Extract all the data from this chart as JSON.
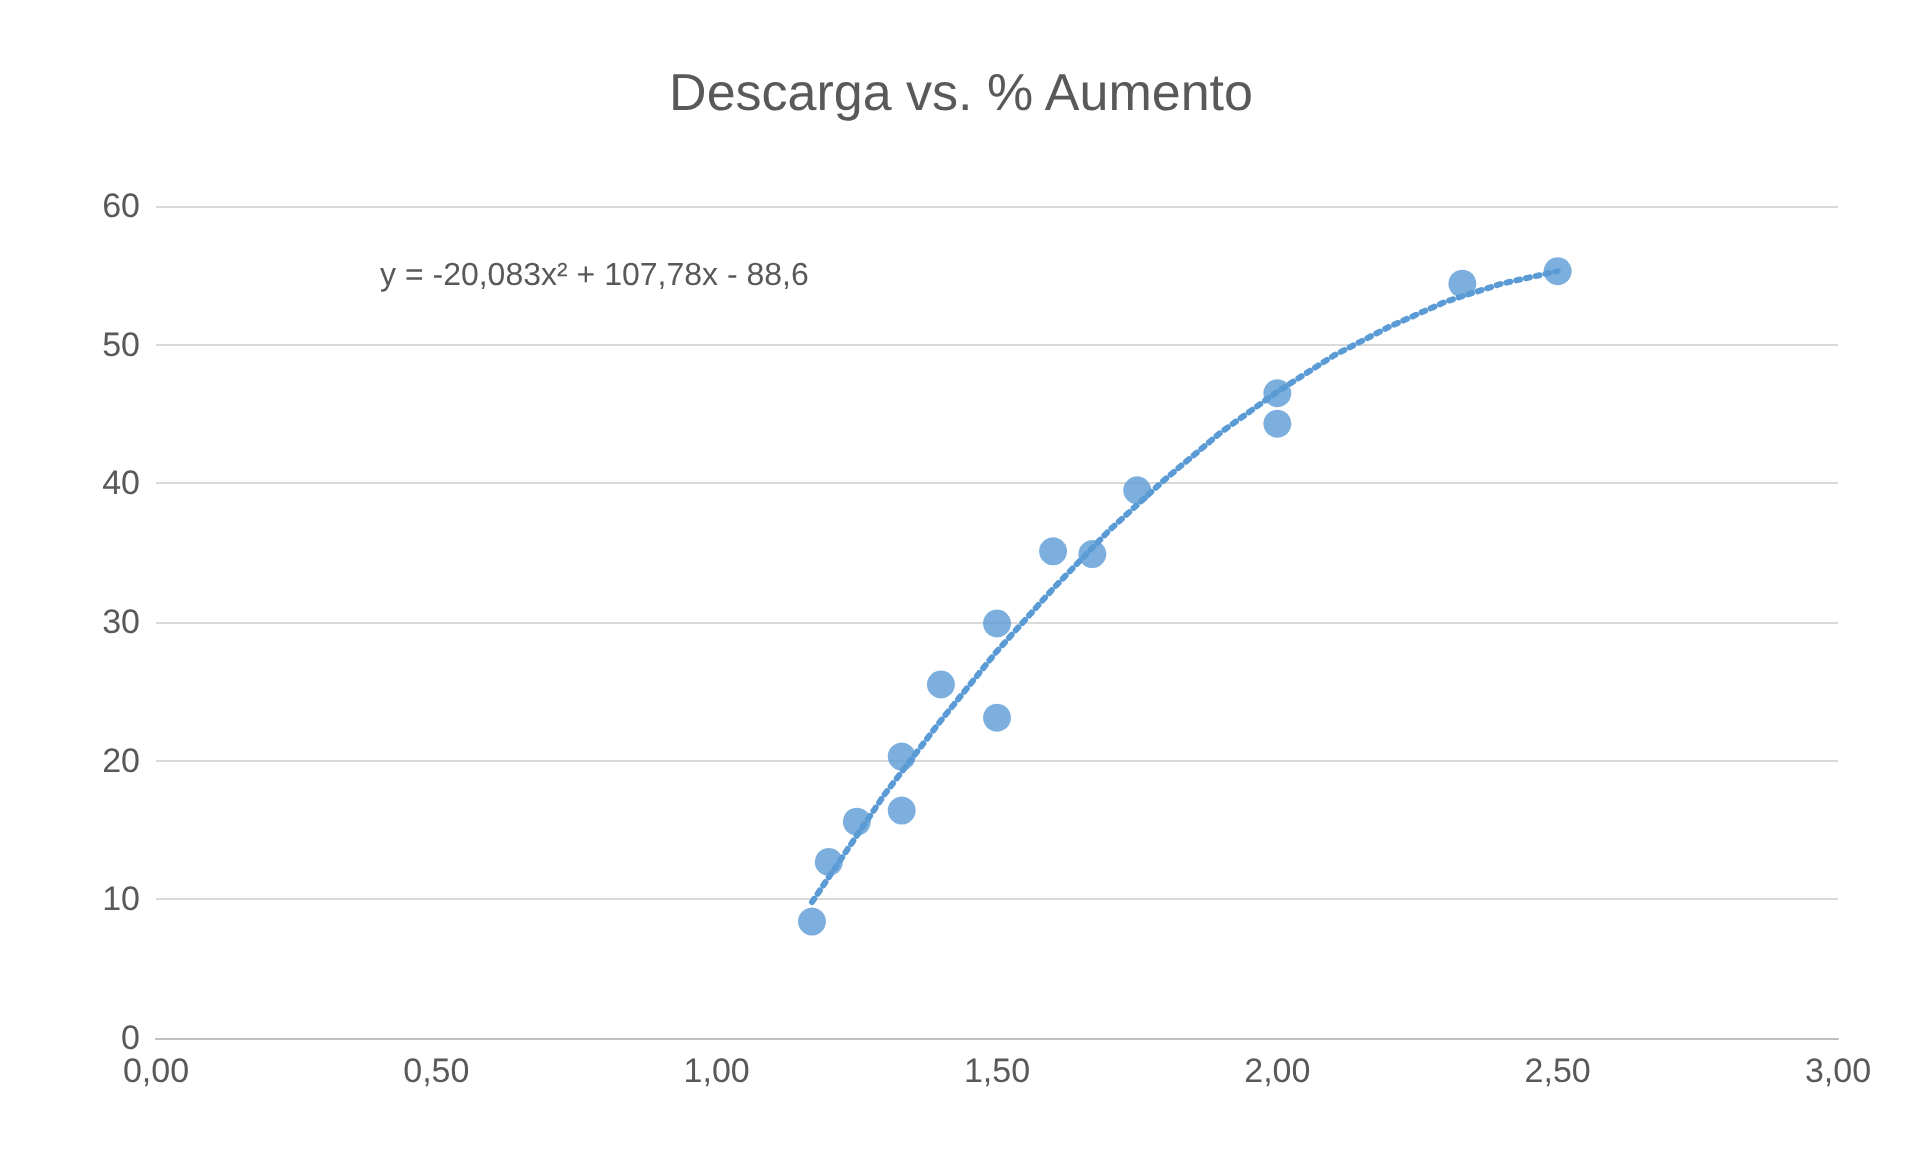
{
  "chart_data": {
    "type": "scatter",
    "title": "Descarga vs. % Aumento",
    "annotations": [
      "y = -20,083x² + 107,78x - 88,6"
    ],
    "series": [
      {
        "color": "#5b9bd5",
        "marker": "circle",
        "x": [
          1.17,
          1.2,
          1.25,
          1.33,
          1.33,
          1.4,
          1.5,
          1.5,
          1.6,
          1.67,
          1.75,
          2.0,
          2.0,
          2.33,
          2.5
        ],
        "values": [
          8.4,
          12.7,
          15.6,
          20.3,
          16.4,
          25.5,
          29.9,
          23.1,
          35.1,
          34.9,
          39.5,
          46.5,
          44.3,
          54.4,
          55.3
        ]
      },
      {
        "type": "line",
        "color": "#5b9bd5",
        "marker": "none",
        "line_style": "dotted",
        "x": [
          1.17,
          1.3,
          1.4,
          1.5,
          1.6,
          1.7,
          1.8,
          1.9,
          2.0,
          2.1,
          2.2,
          2.3,
          2.4,
          2.5
        ],
        "values": [
          9.8,
          17.6,
          22.9,
          27.9,
          32.4,
          36.6,
          40.3,
          43.7,
          46.6,
          49.2,
          51.3,
          53.1,
          54.4,
          55.3
        ]
      }
    ],
    "xlim": [
      0,
      3
    ],
    "xticks": [
      {
        "value": 0,
        "label": "0,00"
      },
      {
        "value": 0.5,
        "label": "0,50"
      },
      {
        "value": 1,
        "label": "1,00"
      },
      {
        "value": 1.5,
        "label": "1,50"
      },
      {
        "value": 2,
        "label": "2,00"
      },
      {
        "value": 2.5,
        "label": "2,50"
      },
      {
        "value": 3,
        "label": "3,00"
      }
    ],
    "ylim": [
      0,
      60
    ],
    "yticks": [
      0,
      10,
      20,
      30,
      40,
      50,
      60
    ],
    "grid": "y"
  }
}
